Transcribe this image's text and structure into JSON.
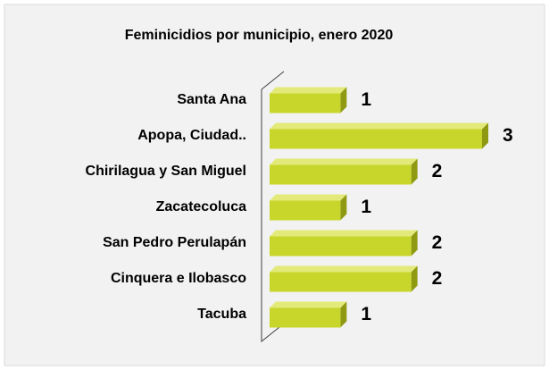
{
  "chart_data": {
    "type": "bar",
    "orientation": "horizontal",
    "title": "Feminicidios por municipio, enero 2020",
    "categories": [
      "Santa Ana",
      "Apopa, Ciudad..",
      "Chirilagua y San Miguel",
      "Zacatecoluca",
      "San Pedro Perulapán",
      "Cinquera e Ilobasco",
      "Tacuba"
    ],
    "values": [
      1,
      3,
      2,
      1,
      2,
      2,
      1
    ],
    "color": "#c8d52b",
    "xlim": [
      0,
      3
    ]
  }
}
